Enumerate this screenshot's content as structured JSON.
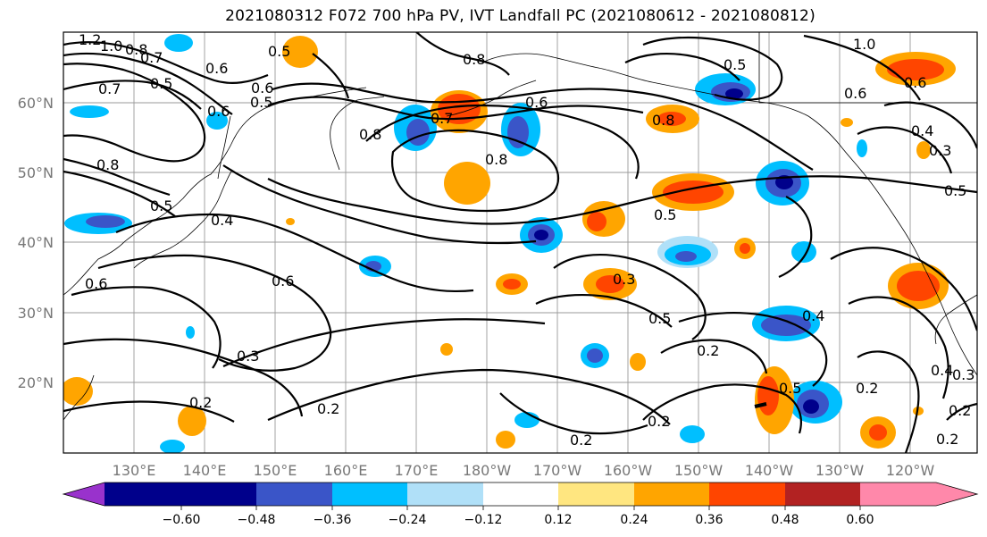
{
  "title": "2021080312 F072 700 hPa PV, IVT Landfall PC (2021080612 - 2021080812)",
  "map": {
    "lat_labels": [
      "60°N",
      "50°N",
      "40°N",
      "30°N",
      "20°N"
    ],
    "lon_labels": [
      "130°E",
      "140°E",
      "150°E",
      "160°E",
      "170°E",
      "180°W",
      "170°W",
      "160°W",
      "150°W",
      "140°W",
      "130°W",
      "120°W"
    ],
    "contour_labels": [
      "1.2",
      "1.0",
      "0.8",
      "0.7",
      "0.6",
      "0.5",
      "0.5",
      "0.8",
      "0.6",
      "0.5",
      "0.7",
      "0.6",
      "0.7",
      "0.6",
      "0.8",
      "0.8",
      "0.8",
      "0.5",
      "1.0",
      "0.6",
      "0.4",
      "0.3",
      "0.5",
      "0.8",
      "0.5",
      "0.6",
      "0.4",
      "0.5",
      "0.6",
      "0.6",
      "0.3",
      "0.5",
      "0.3",
      "0.4",
      "0.5",
      "0.2",
      "0.2",
      "0.2",
      "0.2",
      "0.2",
      "0.4",
      "0.3",
      "0.2",
      "0.2",
      "0.2"
    ]
  },
  "colorbar": {
    "ticks": [
      "−0.60",
      "−0.48",
      "−0.36",
      "−0.24",
      "−0.12",
      "0.12",
      "0.24",
      "0.36",
      "0.48",
      "0.60"
    ],
    "colors": [
      "#9932cc",
      "#00008b",
      "#3a55c8",
      "#00bfff",
      "#b0e0f8",
      "#ffffff",
      "#ffe680",
      "#ffa500",
      "#ff4500",
      "#b22222",
      "#ff88aa"
    ]
  },
  "colors": {
    "pos_low": "#ffe680",
    "pos_mid": "#ffa500",
    "pos_high": "#ff4500",
    "neg_low": "#b0e0f8",
    "neg_mid": "#00bfff",
    "neg_high": "#3a55c8",
    "neg_max": "#00008b"
  }
}
